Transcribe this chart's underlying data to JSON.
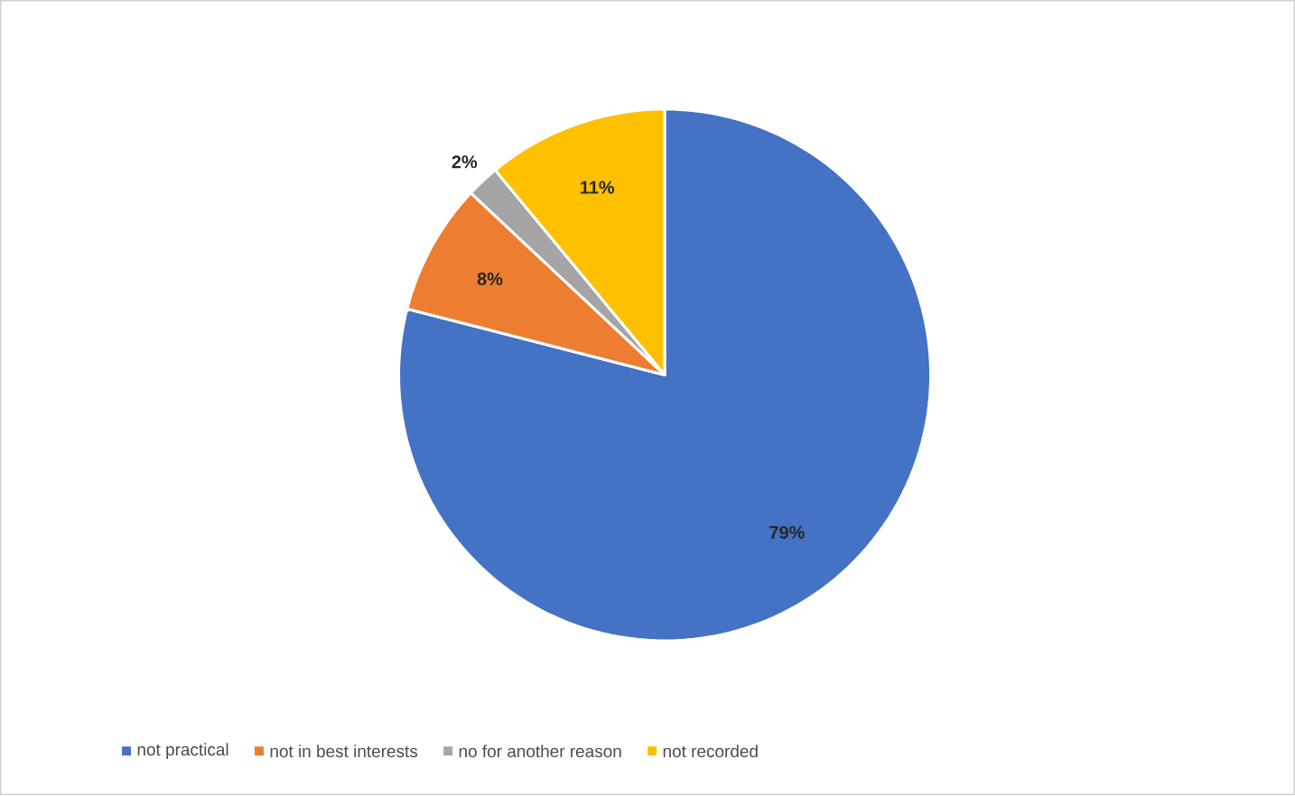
{
  "chart_data": {
    "type": "pie",
    "categories": [
      "not practical",
      "not in best interests",
      "no for another reason",
      "not recorded"
    ],
    "values": [
      79,
      8,
      2,
      11
    ],
    "colors": [
      "#4472c4",
      "#ed7d31",
      "#a5a5a5",
      "#ffc000"
    ],
    "value_labels": [
      "79%",
      "8%",
      "2%",
      "11%"
    ],
    "legend": "bottom"
  }
}
